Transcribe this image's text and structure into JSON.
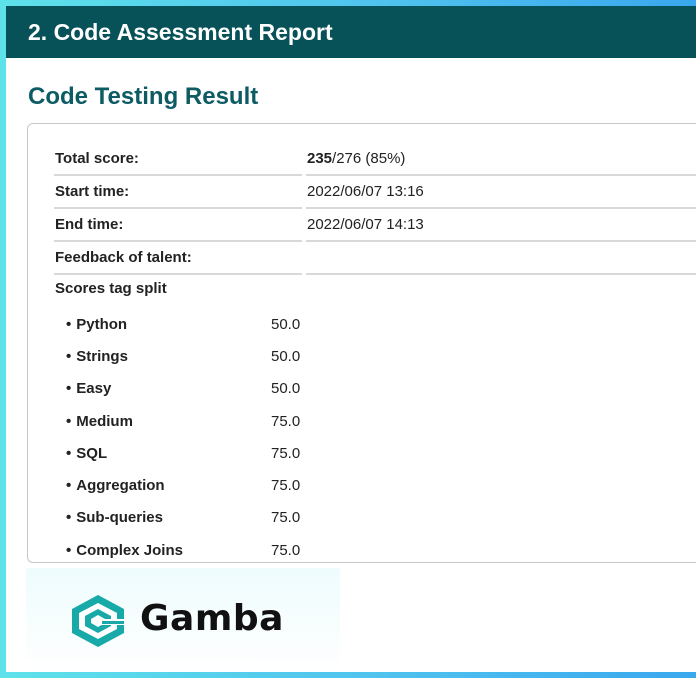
{
  "header": {
    "title": "2. Code Assessment Report"
  },
  "section": {
    "title": "Code Testing Result"
  },
  "summary": [
    {
      "key": "Total score:",
      "value_bold": "235",
      "value_rest": "/276 (85%)"
    },
    {
      "key": "Start time:",
      "value": "2022/06/07 13:16"
    },
    {
      "key": "End time:",
      "value": "2022/06/07 14:13"
    },
    {
      "key": "Feedback of talent:",
      "value": ""
    }
  ],
  "split": {
    "title": "Scores tag split",
    "bullet": "•",
    "tags": [
      {
        "name": "Python",
        "score": "50.0"
      },
      {
        "name": "Strings",
        "score": "50.0"
      },
      {
        "name": "Easy",
        "score": "50.0"
      },
      {
        "name": "Medium",
        "score": "75.0"
      },
      {
        "name": "SQL",
        "score": "75.0"
      },
      {
        "name": "Aggregation",
        "score": "75.0"
      },
      {
        "name": "Sub-queries",
        "score": "75.0"
      },
      {
        "name": "Complex Joins",
        "score": "75.0"
      }
    ]
  },
  "brand": {
    "name": "Gamba",
    "icon": "gamba-logo-icon"
  },
  "colors": {
    "header_bg": "#075159",
    "title_teal": "#0d5b63",
    "logo_teal": "#18a9a9"
  }
}
